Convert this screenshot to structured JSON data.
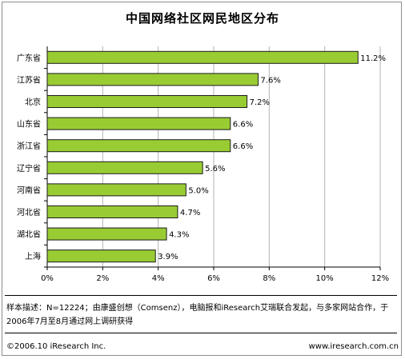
{
  "title": "中国网络社区网民地区分布",
  "note": "样本描述：N=12224；由康盛创想（Comsenz），电脑报和iResearch艾瑞联合发起，与多家网站合作，于2006年7月至8月通过网上调研获得",
  "footer": {
    "left": "©2006.10 iResearch Inc.",
    "right": "www.iresearch.com.cn"
  },
  "colors": {
    "bar_fill": "#99cc33",
    "bar_stroke": "#1a1a1a",
    "grid": "#b3b3b3",
    "axis": "#000000",
    "frame": "#8c8c8c"
  },
  "chart_data": {
    "type": "bar",
    "orientation": "horizontal",
    "title": "中国网络社区网民地区分布",
    "categories": [
      "广东省",
      "江苏省",
      "北京",
      "山东省",
      "浙江省",
      "辽宁省",
      "河南省",
      "河北省",
      "湖北省",
      "上海"
    ],
    "values": [
      11.2,
      7.6,
      7.2,
      6.6,
      6.6,
      5.6,
      5.0,
      4.7,
      4.3,
      3.9
    ],
    "value_labels": [
      "11.2%",
      "7.6%",
      "7.2%",
      "6.6%",
      "6.6%",
      "5.6%",
      "5.0%",
      "4.7%",
      "4.3%",
      "3.9%"
    ],
    "xlim": [
      0,
      12
    ],
    "xticks": [
      0,
      2,
      4,
      6,
      8,
      10,
      12
    ],
    "xtick_labels": [
      "0%",
      "2%",
      "4%",
      "6%",
      "8%",
      "10%",
      "12%"
    ],
    "xlabel": "",
    "ylabel": "",
    "grid": true,
    "legend": "none"
  }
}
